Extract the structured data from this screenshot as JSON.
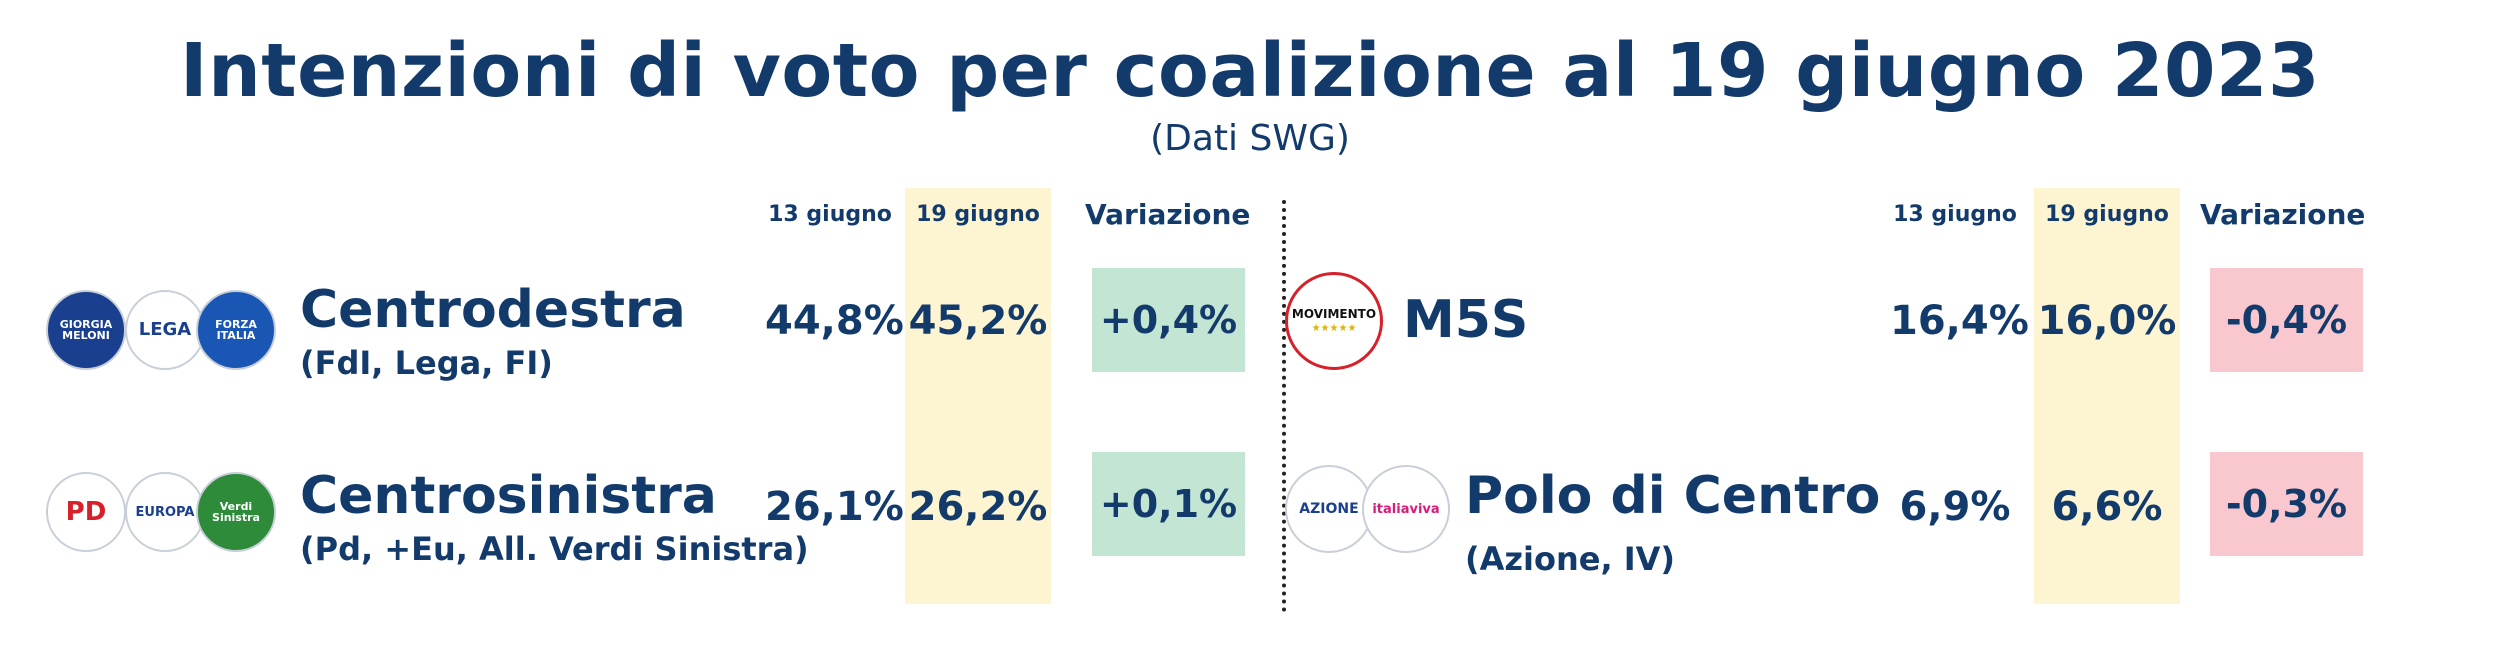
{
  "title": "Intenzioni di voto per coalizione al 19 giugno 2023",
  "subtitle": "(Dati SWG)",
  "headers": {
    "prev": "13 giugno",
    "curr": "19 giugno",
    "change": "Variazione"
  },
  "rows": [
    {
      "name": "Centrodestra",
      "detail": "(FdI, Lega, FI)",
      "prev": "44,8%",
      "curr": "45,2%",
      "change": "+0,4%",
      "logos": [
        {
          "icon": "fdi-logo",
          "text": "GIORGIA MELONI"
        },
        {
          "icon": "lega-logo",
          "text": "LEGA"
        },
        {
          "icon": "forza-italia-logo",
          "text": "FORZA ITALIA"
        }
      ]
    },
    {
      "name": "Centrosinistra",
      "detail": "(Pd, +Eu, All. Verdi Sinistra)",
      "prev": "26,1%",
      "curr": "26,2%",
      "change": "+0,1%",
      "logos": [
        {
          "icon": "pd-logo",
          "text": "PD"
        },
        {
          "icon": "piu-europa-logo",
          "text": "EUROPA"
        },
        {
          "icon": "avs-logo",
          "text": "Verdi Sinistra"
        }
      ]
    },
    {
      "name": "M5S",
      "detail": "",
      "prev": "16,4%",
      "curr": "16,0%",
      "change": "-0,4%",
      "logos": [
        {
          "icon": "m5s-logo",
          "text": "MOVIMENTO"
        }
      ]
    },
    {
      "name": "Polo di Centro",
      "detail": "(Azione, IV)",
      "prev": "6,9%",
      "curr": "6,6%",
      "change": "-0,3%",
      "logos": [
        {
          "icon": "azione-logo",
          "text": "AZIONE"
        },
        {
          "icon": "italia-viva-logo",
          "text": "italiaviva"
        }
      ]
    }
  ],
  "colors": {
    "text": "#123a6b",
    "highlight": "#fdf4d2",
    "positive": "#c2e5d4",
    "negative": "#f9c8cf"
  },
  "chart_data": {
    "type": "table",
    "title": "Intenzioni di voto per coalizione al 19 giugno 2023",
    "subtitle": "(Dati SWG)",
    "columns": [
      "13 giugno",
      "19 giugno",
      "Variazione"
    ],
    "series": [
      {
        "name": "Centrodestra",
        "values": [
          44.8,
          45.2,
          0.4
        ]
      },
      {
        "name": "Centrosinistra",
        "values": [
          26.1,
          26.2,
          0.1
        ]
      },
      {
        "name": "M5S",
        "values": [
          16.4,
          16.0,
          -0.4
        ]
      },
      {
        "name": "Polo di Centro",
        "values": [
          6.9,
          6.6,
          -0.3
        ]
      }
    ]
  }
}
